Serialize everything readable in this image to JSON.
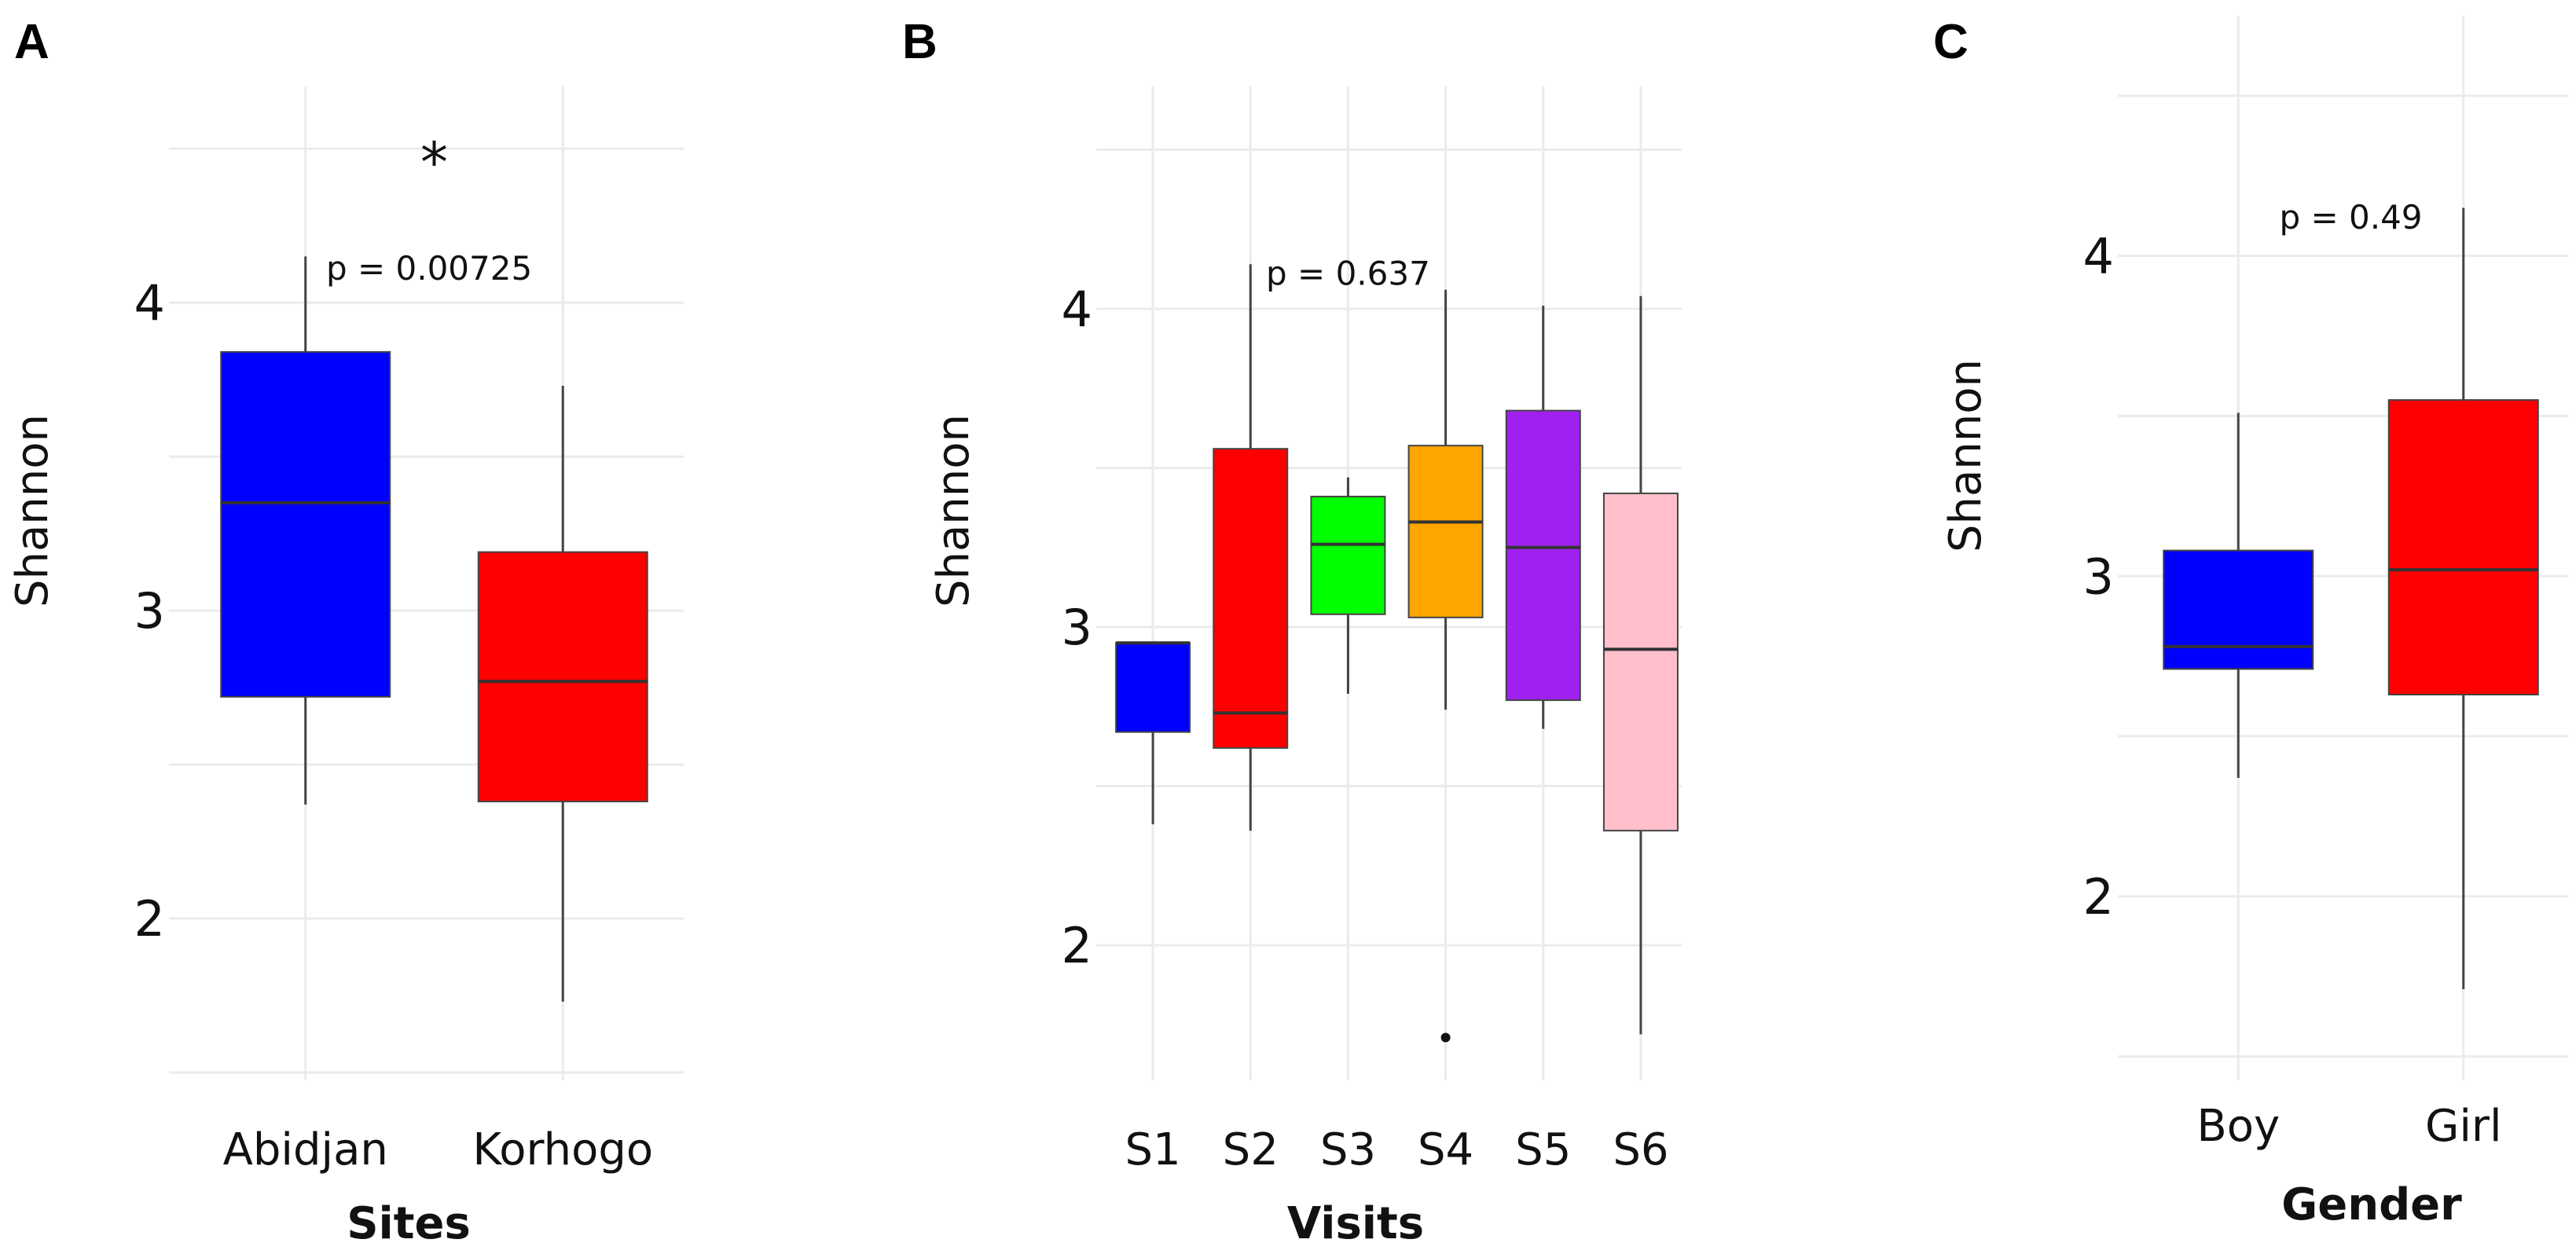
{
  "chart_data": [
    {
      "panel": "A",
      "type": "box",
      "title": "",
      "xlabel": "Sites",
      "ylabel": "Shannon",
      "ylim": [
        1.5,
        4.6
      ],
      "yticks": [
        2,
        3,
        4
      ],
      "ytick_labels": [
        "2",
        "3",
        "4"
      ],
      "categories": [
        "Abidjan",
        "Korhogo"
      ],
      "boxes": [
        {
          "category": "Abidjan",
          "whisker_low": 2.37,
          "q1": 2.72,
          "median": 3.35,
          "q3": 3.84,
          "whisker_high": 4.15,
          "outliers": [],
          "color": "#0000ff"
        },
        {
          "category": "Korhogo",
          "whisker_low": 1.73,
          "q1": 2.38,
          "median": 2.77,
          "q3": 3.19,
          "whisker_high": 3.73,
          "outliers": [],
          "color": "#ff0000"
        }
      ],
      "annotations": [
        {
          "text": "p = 0.00725",
          "x": 1.08,
          "y": 4.11
        },
        {
          "text": "*",
          "x": 1.5,
          "y": 4.48
        }
      ]
    },
    {
      "panel": "B",
      "type": "box",
      "title": "",
      "xlabel": "Visits",
      "ylabel": "Shannon",
      "ylim": [
        1.6,
        4.6
      ],
      "yticks": [
        2,
        3,
        4
      ],
      "ytick_labels": [
        "2",
        "3",
        "4"
      ],
      "categories": [
        "S1",
        "S2",
        "S3",
        "S4",
        "S5",
        "S6"
      ],
      "boxes": [
        {
          "category": "S1",
          "whisker_low": 2.38,
          "q1": 2.67,
          "median": 2.95,
          "q3": 2.95,
          "whisker_high": 2.95,
          "outliers": [],
          "color": "#0000ff"
        },
        {
          "category": "S2",
          "whisker_low": 2.36,
          "q1": 2.62,
          "median": 2.73,
          "q3": 3.56,
          "whisker_high": 4.14,
          "outliers": [],
          "color": "#ff0000"
        },
        {
          "category": "S3",
          "whisker_low": 2.79,
          "q1": 3.04,
          "median": 3.26,
          "q3": 3.41,
          "whisker_high": 3.47,
          "outliers": [],
          "color": "#00ff00"
        },
        {
          "category": "S4",
          "whisker_low": 2.74,
          "q1": 3.03,
          "median": 3.33,
          "q3": 3.57,
          "whisker_high": 4.06,
          "outliers": [
            1.71
          ],
          "color": "#ffa500"
        },
        {
          "category": "S5",
          "whisker_low": 2.68,
          "q1": 2.77,
          "median": 3.25,
          "q3": 3.68,
          "whisker_high": 4.01,
          "outliers": [],
          "color": "#a020f0"
        },
        {
          "category": "S6",
          "whisker_low": 1.72,
          "q1": 2.36,
          "median": 2.93,
          "q3": 3.42,
          "whisker_high": 4.04,
          "outliers": [],
          "color": "#ffc0cb"
        }
      ],
      "annotations": [
        {
          "text": "p = 0.637",
          "x": 3.0,
          "y": 4.11
        }
      ]
    },
    {
      "panel": "C",
      "type": "box",
      "title": "",
      "xlabel": "Gender",
      "ylabel": "Shannon",
      "ylim": [
        1.45,
        4.75
      ],
      "yticks": [
        2,
        3,
        4
      ],
      "ytick_labels": [
        "2",
        "3",
        "4"
      ],
      "categories": [
        "Boy",
        "Girl"
      ],
      "boxes": [
        {
          "category": "Boy",
          "whisker_low": 2.37,
          "q1": 2.71,
          "median": 2.78,
          "q3": 3.08,
          "whisker_high": 3.51,
          "outliers": [],
          "color": "#0000ff"
        },
        {
          "category": "Girl",
          "whisker_low": 1.71,
          "q1": 2.63,
          "median": 3.02,
          "q3": 3.55,
          "whisker_high": 4.15,
          "outliers": [],
          "color": "#ff0000"
        }
      ],
      "annotations": [
        {
          "text": "p = 0.49",
          "x": 1.5,
          "y": 4.12
        }
      ]
    }
  ]
}
